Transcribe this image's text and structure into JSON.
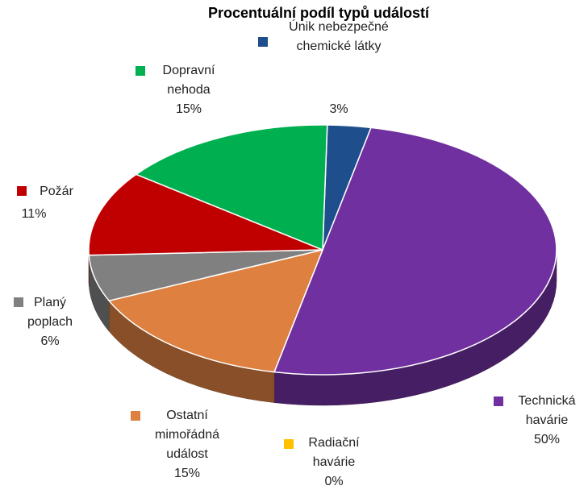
{
  "chart_data": {
    "type": "pie3d",
    "title": "Procentuální podíl typů událostí",
    "categories": [
      "Únik nebezpečné chemické látky",
      "Technická havárie",
      "Radiační havárie",
      "Ostatní mimořádná událost",
      "Planý poplach",
      "Požár",
      "Dopravní nehoda"
    ],
    "values": [
      3,
      50,
      0,
      15,
      6,
      11,
      15
    ],
    "value_labels": [
      "3%",
      "50%",
      "0%",
      "15%",
      "6%",
      "11%",
      "15%"
    ],
    "colors": [
      "#1f4e8c",
      "#7030a0",
      "#ffc000",
      "#dd8040",
      "#808080",
      "#c00000",
      "#00b050"
    ]
  }
}
